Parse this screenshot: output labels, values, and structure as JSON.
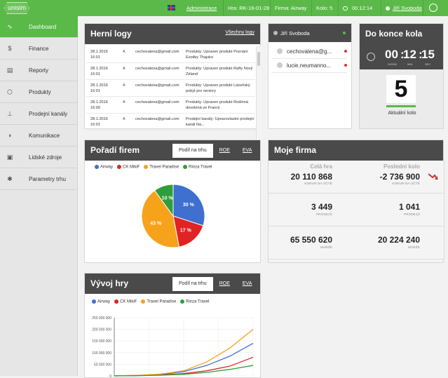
{
  "topbar": {
    "logo": "unisim",
    "admin_link": "Administrace",
    "game": "Hra: RK-16-01-28",
    "firm": "Firma: Airway",
    "round": "Kolo: 5",
    "clock": "00:12:14",
    "user": "Jiří Svoboda"
  },
  "sidebar": {
    "items": [
      {
        "label": "Dashboard",
        "icon": "trend-icon",
        "glyph": "∿"
      },
      {
        "label": "Finance",
        "icon": "dollar-icon",
        "glyph": "$"
      },
      {
        "label": "Reporty",
        "icon": "report-icon",
        "glyph": "▤"
      },
      {
        "label": "Produkty",
        "icon": "box-icon",
        "glyph": "⬡"
      },
      {
        "label": "Prodejní kanály",
        "icon": "channels-icon",
        "glyph": "⊥"
      },
      {
        "label": "Komunikace",
        "icon": "chat-icon",
        "glyph": "◖"
      },
      {
        "label": "Lidské zdroje",
        "icon": "gift-icon",
        "glyph": "▣"
      },
      {
        "label": "Parametry trhu",
        "icon": "gear-icon",
        "glyph": "✱"
      }
    ]
  },
  "logs": {
    "title": "Herní logy",
    "all_link": "Všechny logy",
    "rows": [
      {
        "date": "28.1.2016",
        "time": "16:01",
        "round": "4.",
        "email": "cechovalena@gmail.com",
        "text": "Produkty: Upraven produkt Poznání Exotiky Thajsko"
      },
      {
        "date": "28.1.2016",
        "time": "16:01",
        "round": "4.",
        "email": "cechovalena@gmail.com",
        "text": "Produkty: Upraven produkt Rafty Nový Zéland"
      },
      {
        "date": "28.1.2016",
        "time": "16:01",
        "round": "4.",
        "email": "cechovalena@gmail.com",
        "text": "Produkty: Upraven produkt Lázeňský pobyt pro seniory"
      },
      {
        "date": "28.1.2016",
        "time": "16:00",
        "round": "4.",
        "email": "cechovalena@gmail.com",
        "text": "Produkty: Upraven produkt Rodinná dovolená ve Francii"
      },
      {
        "date": "28.1.2016",
        "time": "16:01",
        "round": "4.",
        "email": "cechovalena@gmail.com",
        "text": "Prodejní kanály: Upravovlastní prodejní kanál Na..."
      }
    ]
  },
  "users": {
    "title": "Jiří Svoboda",
    "list": [
      "cechovalena@g...",
      "lucie.neumanno..."
    ]
  },
  "countdown": {
    "title": "Do konce kola",
    "hours": "00",
    "minutes": "12",
    "seconds": "15",
    "hours_label": "HODIN",
    "minutes_label": "MIN",
    "seconds_label": "SEC",
    "round_number": "5",
    "round_label": "Aktuální kolo"
  },
  "ranking": {
    "title": "Pořadí firem",
    "tabs": [
      "Podíl na trhu",
      "ROE",
      "EVA"
    ],
    "active_tab": "Podíl na trhu"
  },
  "company": {
    "title": "Moje firma",
    "col_total": "Celá hra",
    "col_last": "Poslední kolo",
    "rows": [
      {
        "total": "20 110 868",
        "last": "-2 736 900",
        "label": "KORUN NA ÚČTĚ"
      },
      {
        "total": "3 449",
        "last": "1 041",
        "label": "PRODEJŮ"
      },
      {
        "total": "65 550 620",
        "last": "20 224 240",
        "label": "MARŽE"
      }
    ],
    "colors": {
      "negative_arrow": "#d32f2f"
    }
  },
  "evolution": {
    "title": "Vývoj hry",
    "tabs": [
      "Podíl na trhu",
      "ROE",
      "EVA"
    ],
    "active_tab": "Podíl na trhu"
  },
  "chart_data": [
    {
      "type": "pie",
      "labels": [
        "Airway",
        "CK MikiF",
        "Travel Paradise",
        "Rinza Travel"
      ],
      "values": [
        30,
        17,
        43,
        10
      ],
      "value_labels": [
        "30 %",
        "17 %",
        "43 %",
        "10 %"
      ],
      "colors": [
        "#3f6fcf",
        "#e02323",
        "#f7a21b",
        "#2f9e3a"
      ]
    },
    {
      "type": "line",
      "series": [
        {
          "name": "Airway",
          "color": "#3f6fcf",
          "values": [
            0,
            2000000,
            6000000,
            18000000,
            45000000,
            85000000,
            140000000
          ]
        },
        {
          "name": "CK MikiF",
          "color": "#e02323",
          "values": [
            0,
            1500000,
            4000000,
            10000000,
            22000000,
            42000000,
            80000000
          ]
        },
        {
          "name": "Travel Paradise",
          "color": "#f7a21b",
          "values": [
            0,
            2500000,
            8000000,
            22000000,
            60000000,
            120000000,
            200000000
          ]
        },
        {
          "name": "Rinza Travel",
          "color": "#2f9e3a",
          "values": [
            0,
            1000000,
            3000000,
            7000000,
            15000000,
            28000000,
            45000000
          ]
        }
      ],
      "ylim": [
        0,
        250000000
      ],
      "yticks": [
        "0",
        "50 000 000",
        "100 000 000",
        "150 000 000",
        "200 000 000",
        "250 000 000"
      ]
    }
  ]
}
